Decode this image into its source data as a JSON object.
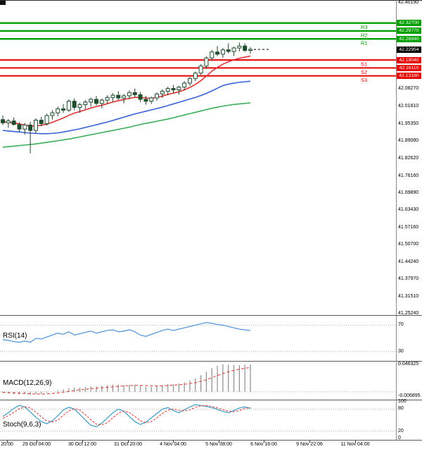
{
  "colors": {
    "background": "#ffffff",
    "resistance": "#00a000",
    "support": "#e60000",
    "current": "#000000",
    "bull": "#ffffff",
    "bear": "#1f4d2e",
    "candle_stroke": "#1f4d2e",
    "wick": "#26402e",
    "ma_fast": "#e03232",
    "ma_mid": "#3a62d8",
    "ma_slow": "#3cae5a",
    "rsi": "#4a90d9",
    "macd_hist": "#8c8c8c",
    "macd_signal": "#e03232",
    "stoch_k": "#3b9cc4",
    "stoch_d": "#e03232",
    "level_dotted": "#b8b8b8"
  },
  "chart_data": {
    "type": "candlestick",
    "timeframe_labels": [
      "20:00",
      "29 Oct 04:00",
      "30 Oct 12:00",
      "31 Oct 20:00",
      "4 Nov 04:00",
      "5 Nov 08:00",
      "6 Nov 16:00",
      "9 Nov 22:06",
      "11 Nov 04:00"
    ],
    "price_axis": {
      "max": 42.4019,
      "min": 41.2524,
      "visible_ticks": [
        "42.40190",
        "42.08270",
        "42.01810",
        "41.95350",
        "41.89080",
        "41.82620",
        "41.76160",
        "41.69890",
        "41.63430",
        "41.57160",
        "41.50700",
        "41.44240",
        "41.37970",
        "41.31510",
        "41.25240"
      ]
    },
    "current_price": {
      "value": "42.22954",
      "numeric": 42.22954
    },
    "pivot_levels": {
      "resistance": [
        {
          "name": "R3",
          "value": "42.32700",
          "numeric": 42.327
        },
        {
          "name": "R2",
          "value": "42.29770",
          "numeric": 42.2977
        },
        {
          "name": "R1",
          "value": "42.26840",
          "numeric": 42.2684
        }
      ],
      "support": [
        {
          "name": "S1",
          "value": "42.19040",
          "numeric": 42.1904
        },
        {
          "name": "S2",
          "value": "42.16110",
          "numeric": 42.1611
        },
        {
          "name": "S3",
          "value": "42.13180",
          "numeric": 42.1318
        }
      ]
    },
    "candles": [
      [
        41.97,
        41.985,
        41.95,
        41.958
      ],
      [
        41.958,
        41.972,
        41.94,
        41.965
      ],
      [
        41.965,
        41.978,
        41.948,
        41.952
      ],
      [
        41.952,
        41.96,
        41.925,
        41.935
      ],
      [
        41.935,
        41.958,
        41.915,
        41.95
      ],
      [
        41.95,
        41.962,
        41.845,
        41.93
      ],
      [
        41.93,
        41.975,
        41.92,
        41.968
      ],
      [
        41.968,
        41.98,
        41.945,
        41.955
      ],
      [
        41.955,
        41.992,
        41.948,
        41.985
      ],
      [
        41.985,
        42.005,
        41.97,
        41.995
      ],
      [
        41.995,
        42.018,
        41.982,
        42.01
      ],
      [
        42.01,
        42.028,
        41.995,
        42.005
      ],
      [
        42.005,
        42.045,
        41.998,
        42.038
      ],
      [
        42.038,
        42.048,
        42.005,
        42.015
      ],
      [
        42.015,
        42.032,
        41.995,
        42.025
      ],
      [
        42.025,
        42.042,
        42.008,
        42.035
      ],
      [
        42.035,
        42.052,
        42.018,
        42.045
      ],
      [
        42.045,
        42.058,
        42.022,
        42.03
      ],
      [
        42.03,
        42.048,
        42.012,
        42.042
      ],
      [
        42.042,
        42.06,
        42.028,
        42.052
      ],
      [
        42.052,
        42.068,
        42.035,
        42.06
      ],
      [
        42.06,
        42.075,
        42.042,
        42.05
      ],
      [
        42.05,
        42.065,
        42.03,
        42.058
      ],
      [
        42.058,
        42.078,
        42.045,
        42.07
      ],
      [
        42.07,
        42.085,
        42.052,
        42.062
      ],
      [
        42.062,
        42.072,
        42.035,
        42.045
      ],
      [
        42.045,
        42.058,
        42.025,
        42.038
      ],
      [
        42.038,
        42.055,
        42.028,
        42.05
      ],
      [
        42.05,
        42.07,
        42.04,
        42.065
      ],
      [
        42.065,
        42.082,
        42.05,
        42.075
      ],
      [
        42.075,
        42.092,
        42.06,
        42.085
      ],
      [
        42.085,
        42.098,
        42.068,
        42.08
      ],
      [
        42.08,
        42.095,
        42.062,
        42.09
      ],
      [
        42.09,
        42.112,
        42.078,
        42.105
      ],
      [
        42.105,
        42.128,
        42.095,
        42.122
      ],
      [
        42.122,
        42.148,
        42.112,
        42.142
      ],
      [
        42.142,
        42.175,
        42.135,
        42.168
      ],
      [
        42.168,
        42.205,
        42.158,
        42.198
      ],
      [
        42.198,
        42.228,
        42.188,
        42.22
      ],
      [
        42.22,
        42.242,
        42.205,
        42.212
      ],
      [
        42.212,
        42.235,
        42.198,
        42.228
      ],
      [
        42.228,
        42.252,
        42.215,
        42.222
      ],
      [
        42.222,
        42.24,
        42.205,
        42.235
      ],
      [
        42.235,
        42.255,
        42.222,
        42.242
      ],
      [
        42.242,
        42.252,
        42.22,
        42.226
      ],
      [
        42.226,
        42.238,
        42.214,
        42.23
      ]
    ],
    "moving_averages": [
      {
        "name": "ma-fast",
        "color": "#e03232",
        "values": [
          41.962,
          41.96,
          41.958,
          41.954,
          41.95,
          41.946,
          41.947,
          41.949,
          41.953,
          41.96,
          41.968,
          41.976,
          41.986,
          41.994,
          42.0,
          42.006,
          42.013,
          42.018,
          42.023,
          42.029,
          42.035,
          42.04,
          42.044,
          42.049,
          42.052,
          42.052,
          42.05,
          42.049,
          42.052,
          42.057,
          42.063,
          42.068,
          42.073,
          42.08,
          42.089,
          42.1,
          42.114,
          42.131,
          42.149,
          42.163,
          42.175,
          42.184,
          42.191,
          42.197,
          42.201,
          42.205
        ]
      },
      {
        "name": "ma-mid",
        "color": "#3a62d8",
        "values": [
          41.93,
          41.928,
          41.926,
          41.924,
          41.922,
          41.92,
          41.919,
          41.918,
          41.918,
          41.919,
          41.921,
          41.924,
          41.928,
          41.932,
          41.936,
          41.941,
          41.946,
          41.951,
          41.956,
          41.961,
          41.967,
          41.973,
          41.979,
          41.985,
          41.991,
          41.996,
          42.001,
          42.006,
          42.011,
          42.016,
          42.022,
          42.028,
          42.034,
          42.04,
          42.046,
          42.052,
          42.059,
          42.067,
          42.076,
          42.086,
          42.096,
          42.101,
          42.105,
          42.108,
          42.11,
          42.112
        ]
      },
      {
        "name": "ma-slow",
        "color": "#3cae5a",
        "values": [
          41.868,
          41.87,
          41.872,
          41.874,
          41.876,
          41.878,
          41.88,
          41.883,
          41.886,
          41.889,
          41.892,
          41.895,
          41.898,
          41.902,
          41.906,
          41.91,
          41.914,
          41.918,
          41.922,
          41.926,
          41.93,
          41.934,
          41.938,
          41.942,
          41.947,
          41.952,
          41.956,
          41.96,
          41.964,
          41.968,
          41.972,
          41.977,
          41.982,
          41.987,
          41.992,
          41.997,
          42.002,
          42.007,
          42.012,
          42.016,
          42.02,
          42.023,
          42.026,
          42.028,
          42.03,
          42.032
        ]
      }
    ],
    "indicators": [
      {
        "name": "RSI(14)",
        "type": "line",
        "color": "#4a90d9",
        "range": [
          0,
          100
        ],
        "levels": [
          70,
          30
        ],
        "level_labels": [
          "70",
          "30"
        ],
        "values": [
          48,
          47,
          45,
          44,
          46,
          44,
          50,
          49,
          52,
          55,
          58,
          56,
          60,
          55,
          57,
          59,
          61,
          58,
          60,
          62,
          63,
          60,
          61,
          63,
          60,
          55,
          53,
          56,
          59,
          62,
          64,
          62,
          64,
          66,
          68,
          70,
          72,
          74,
          73,
          71,
          70,
          68,
          66,
          64,
          63,
          62
        ]
      },
      {
        "name": "MACD(12,26,9)",
        "type": "macd",
        "scale_labels": [
          "0.046325",
          "-0.006895"
        ],
        "scale_values": [
          0.046325,
          -0.006895
        ],
        "histogram": [
          -0.002,
          -0.003,
          -0.004,
          -0.0045,
          -0.004,
          -0.0055,
          -0.0045,
          -0.004,
          -0.002,
          0.0,
          0.002,
          0.004,
          0.006,
          0.007,
          0.007,
          0.008,
          0.009,
          0.009,
          0.01,
          0.011,
          0.012,
          0.012,
          0.011,
          0.012,
          0.012,
          0.01,
          0.008,
          0.008,
          0.009,
          0.011,
          0.013,
          0.013,
          0.014,
          0.016,
          0.019,
          0.023,
          0.028,
          0.034,
          0.04,
          0.044,
          0.0463,
          0.046,
          0.0455,
          0.045,
          0.0458,
          0.0463
        ],
        "signal": [
          -0.001,
          -0.0015,
          -0.002,
          -0.0026,
          -0.003,
          -0.0035,
          -0.0038,
          -0.004,
          -0.0038,
          -0.003,
          -0.002,
          -0.0008,
          0.0005,
          0.002,
          0.0032,
          0.0042,
          0.0052,
          0.006,
          0.0068,
          0.0076,
          0.0084,
          0.0092,
          0.0098,
          0.0103,
          0.0108,
          0.0108,
          0.0104,
          0.01,
          0.0098,
          0.01,
          0.0106,
          0.0112,
          0.0118,
          0.0126,
          0.0138,
          0.0154,
          0.0176,
          0.0204,
          0.0238,
          0.0274,
          0.0308,
          0.0338,
          0.0362,
          0.0382,
          0.0398,
          0.0412
        ]
      },
      {
        "name": "Stoch(9,6,3)",
        "type": "stoch",
        "range": [
          0,
          100
        ],
        "levels": [
          80,
          20
        ],
        "scale_labels": [
          "100",
          "80",
          "20",
          "0"
        ],
        "scale_values": [
          100,
          80,
          20,
          0
        ],
        "k": [
          60,
          70,
          82,
          90,
          86,
          72,
          58,
          46,
          40,
          48,
          62,
          78,
          85,
          80,
          66,
          50,
          36,
          32,
          42,
          56,
          70,
          80,
          74,
          60,
          46,
          38,
          44,
          56,
          68,
          80,
          84,
          76,
          70,
          78,
          86,
          92,
          90,
          87,
          84,
          79,
          74,
          70,
          76,
          83,
          86,
          82
        ],
        "d": [
          55,
          62,
          71,
          81,
          86,
          83,
          72,
          59,
          48,
          45,
          50,
          63,
          75,
          81,
          77,
          65,
          51,
          39,
          37,
          43,
          56,
          69,
          75,
          71,
          60,
          48,
          43,
          46,
          56,
          68,
          77,
          80,
          77,
          75,
          78,
          85,
          89,
          90,
          87,
          83,
          79,
          74,
          73,
          76,
          82,
          84
        ]
      }
    ]
  }
}
